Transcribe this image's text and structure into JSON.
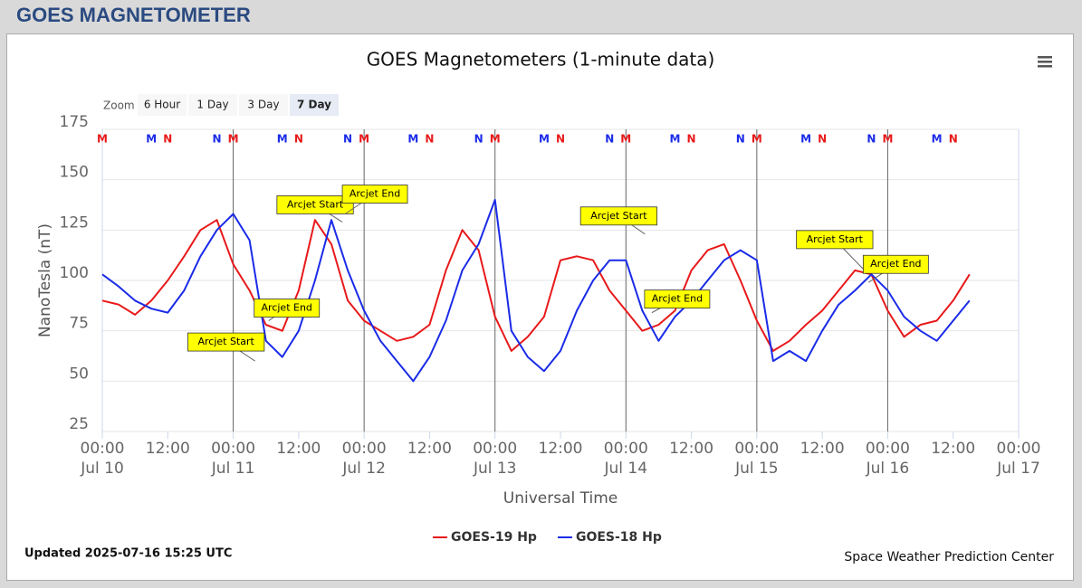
{
  "header": {
    "title": "GOES MAGNETOMETER"
  },
  "zoom": {
    "label": "Zoom",
    "buttons": [
      "6 Hour",
      "1 Day",
      "3 Day",
      "7 Day"
    ],
    "selected": 3
  },
  "footer": {
    "updated": "Updated 2025-07-16 15:25 UTC",
    "credit": "Space Weather Prediction Center"
  },
  "chart_data": {
    "type": "line",
    "title": "GOES Magnetometers (1-minute data)",
    "x_label": "Universal Time",
    "y_label": "NanoTesla (nT)",
    "xlim": [
      "Jul 10 00:00",
      "Jul 17 00:00"
    ],
    "ylim": [
      25,
      175
    ],
    "yticks": [
      25,
      50,
      75,
      100,
      125,
      150,
      175
    ],
    "grid": true,
    "xticks": [
      {
        "value": "Jul 10 00:00",
        "label": "00:00",
        "sublabel": "Jul 10"
      },
      {
        "value": "Jul 10 12:00",
        "label": "12:00"
      },
      {
        "value": "Jul 11 00:00",
        "label": "00:00",
        "sublabel": "Jul 11"
      },
      {
        "value": "Jul 11 12:00",
        "label": "12:00"
      },
      {
        "value": "Jul 12 00:00",
        "label": "00:00",
        "sublabel": "Jul 12"
      },
      {
        "value": "Jul 12 12:00",
        "label": "12:00"
      },
      {
        "value": "Jul 13 00:00",
        "label": "00:00",
        "sublabel": "Jul 13"
      },
      {
        "value": "Jul 13 12:00",
        "label": "12:00"
      },
      {
        "value": "Jul 14 00:00",
        "label": "00:00",
        "sublabel": "Jul 14"
      },
      {
        "value": "Jul 14 12:00",
        "label": "12:00"
      },
      {
        "value": "Jul 15 00:00",
        "label": "00:00",
        "sublabel": "Jul 15"
      },
      {
        "value": "Jul 15 12:00",
        "label": "12:00"
      },
      {
        "value": "Jul 16 00:00",
        "label": "00:00",
        "sublabel": "Jul 16"
      },
      {
        "value": "Jul 16 12:00",
        "label": "12:00"
      },
      {
        "value": "Jul 17 00:00",
        "label": "00:00",
        "sublabel": "Jul 17"
      }
    ],
    "x": [
      "Jul 10 00:00",
      "Jul 10 03:00",
      "Jul 10 06:00",
      "Jul 10 09:00",
      "Jul 10 12:00",
      "Jul 10 15:00",
      "Jul 10 18:00",
      "Jul 10 21:00",
      "Jul 11 00:00",
      "Jul 11 03:00",
      "Jul 11 06:00",
      "Jul 11 09:00",
      "Jul 11 12:00",
      "Jul 11 15:00",
      "Jul 11 18:00",
      "Jul 11 21:00",
      "Jul 12 00:00",
      "Jul 12 03:00",
      "Jul 12 06:00",
      "Jul 12 09:00",
      "Jul 12 12:00",
      "Jul 12 15:00",
      "Jul 12 18:00",
      "Jul 12 21:00",
      "Jul 13 00:00",
      "Jul 13 03:00",
      "Jul 13 06:00",
      "Jul 13 09:00",
      "Jul 13 12:00",
      "Jul 13 15:00",
      "Jul 13 18:00",
      "Jul 13 21:00",
      "Jul 14 00:00",
      "Jul 14 03:00",
      "Jul 14 06:00",
      "Jul 14 09:00",
      "Jul 14 12:00",
      "Jul 14 15:00",
      "Jul 14 18:00",
      "Jul 14 21:00",
      "Jul 15 00:00",
      "Jul 15 03:00",
      "Jul 15 06:00",
      "Jul 15 09:00",
      "Jul 15 12:00",
      "Jul 15 15:00",
      "Jul 15 18:00",
      "Jul 15 21:00",
      "Jul 16 00:00",
      "Jul 16 03:00",
      "Jul 16 06:00",
      "Jul 16 09:00",
      "Jul 16 12:00",
      "Jul 16 15:00"
    ],
    "series": [
      {
        "name": "GOES-19 Hp",
        "color": "#e8191a",
        "values": [
          90,
          88,
          83,
          90,
          100,
          112,
          125,
          130,
          108,
          95,
          78,
          75,
          95,
          130,
          118,
          90,
          80,
          75,
          70,
          72,
          78,
          105,
          125,
          115,
          82,
          65,
          72,
          82,
          110,
          112,
          110,
          95,
          85,
          75,
          78,
          85,
          105,
          115,
          118,
          100,
          80,
          65,
          70,
          78,
          85,
          95,
          105,
          103,
          85,
          72,
          78,
          80,
          90,
          103
        ]
      },
      {
        "name": "GOES-18 Hp",
        "color": "#1a2be8",
        "values": [
          103,
          97,
          90,
          86,
          84,
          95,
          112,
          125,
          133,
          120,
          70,
          62,
          75,
          100,
          130,
          105,
          85,
          70,
          60,
          50,
          62,
          80,
          105,
          118,
          140,
          75,
          62,
          55,
          65,
          85,
          100,
          110,
          110,
          85,
          70,
          82,
          90,
          100,
          110,
          115,
          110,
          60,
          65,
          60,
          75,
          88,
          95,
          103,
          95,
          82,
          75,
          70,
          80,
          90
        ]
      }
    ],
    "markers": [
      {
        "label": "M",
        "color": "#e8191a",
        "x": [
          "Jul 10 00:00",
          "Jul 11 00:00",
          "Jul 12 00:00",
          "Jul 13 00:00",
          "Jul 14 00:00",
          "Jul 15 00:00",
          "Jul 16 00:00"
        ]
      },
      {
        "label": "M",
        "color": "#1a2be8",
        "x": [
          "Jul 10 09:00",
          "Jul 11 09:00",
          "Jul 12 09:00",
          "Jul 13 09:00",
          "Jul 14 09:00",
          "Jul 15 09:00",
          "Jul 16 09:00"
        ]
      },
      {
        "label": "N",
        "color": "#e8191a",
        "x": [
          "Jul 10 12:00",
          "Jul 11 12:00",
          "Jul 12 12:00",
          "Jul 13 12:00",
          "Jul 14 12:00",
          "Jul 15 12:00",
          "Jul 16 12:00"
        ]
      },
      {
        "label": "N",
        "color": "#1a2be8",
        "x": [
          "Jul 10 21:00",
          "Jul 11 21:00",
          "Jul 12 21:00",
          "Jul 13 21:00",
          "Jul 14 21:00",
          "Jul 15 21:00"
        ]
      }
    ],
    "annotations": [
      {
        "text": "Arcjet Start",
        "x": "Jul 11 04:00",
        "y": 60
      },
      {
        "text": "Arcjet End",
        "x": "Jul 11 06:30",
        "y": 80
      },
      {
        "text": "Arcjet Start",
        "x": "Jul 11 20:00",
        "y": 129
      },
      {
        "text": "Arcjet End",
        "x": "Jul 11 20:30",
        "y": 133
      },
      {
        "text": "Arcjet Start",
        "x": "Jul 14 03:30",
        "y": 123
      },
      {
        "text": "Arcjet End",
        "x": "Jul 14 04:45",
        "y": 84
      },
      {
        "text": "Arcjet Start",
        "x": "Jul 15 19:45",
        "y": 105
      },
      {
        "text": "Arcjet End",
        "x": "Jul 15 20:30",
        "y": 99
      }
    ]
  }
}
